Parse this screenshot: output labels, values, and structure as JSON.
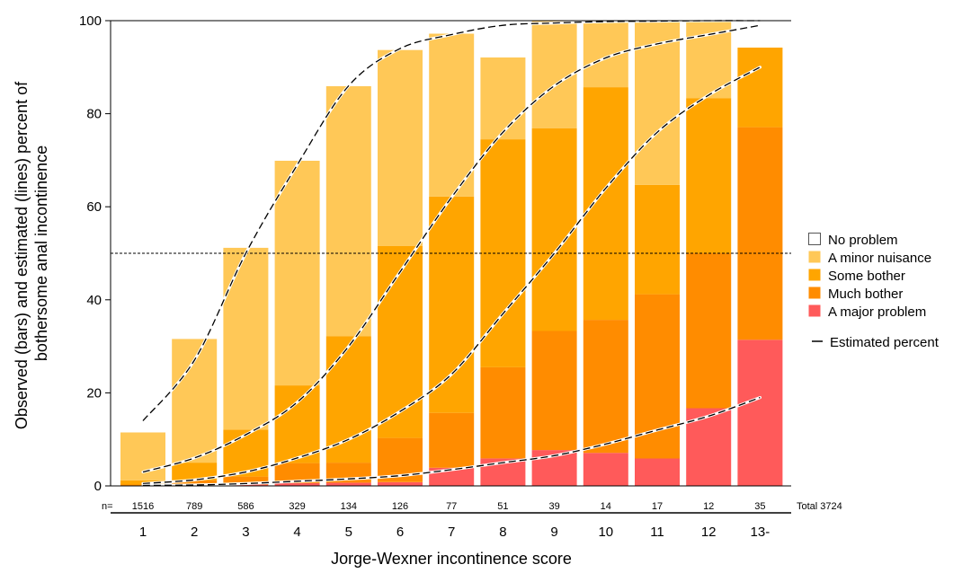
{
  "chart_data": {
    "type": "bar",
    "stacked": true,
    "xlabel": "Jorge-Wexner incontinence score",
    "ylabel": "Observed (bars) and estimated (lines) percent of bothersome anal incontinence",
    "ylabel_lines": [
      "Observed (bars) and estimated (lines) percent of",
      "bothersome anal incontinence"
    ],
    "ylim": [
      0,
      100
    ],
    "yticks": [
      0,
      20,
      40,
      60,
      80,
      100
    ],
    "categories": [
      "1",
      "2",
      "3",
      "4",
      "5",
      "6",
      "7",
      "8",
      "9",
      "10",
      "11",
      "12",
      "13-"
    ],
    "n_prefix": "n=",
    "n_values": [
      "1516",
      "789",
      "586",
      "329",
      "134",
      "126",
      "77",
      "51",
      "39",
      "14",
      "17",
      "12",
      "35"
    ],
    "n_total": "Total 3724",
    "reference_line_y": 50,
    "series": [
      {
        "name": "A major problem",
        "color": "#ff5a5a",
        "values": [
          0,
          0.3,
          0.3,
          0.6,
          0.7,
          0.8,
          3.9,
          5.9,
          7.7,
          7.1,
          5.9,
          16.7,
          31.4
        ]
      },
      {
        "name": "Much bother",
        "color": "#ff8c00",
        "values": [
          0.3,
          0.9,
          1.7,
          4.3,
          4.3,
          9.5,
          11.8,
          19.6,
          25.6,
          28.6,
          35.3,
          33.3,
          45.7
        ]
      },
      {
        "name": "Some bother",
        "color": "#ffa500",
        "values": [
          0.9,
          3.8,
          10.1,
          16.7,
          27.2,
          41.3,
          46.5,
          49.0,
          43.6,
          50.0,
          23.5,
          33.3,
          17.1
        ]
      },
      {
        "name": "A minor nuisance",
        "color": "#ffc857",
        "values": [
          10.3,
          26.6,
          39.1,
          48.3,
          53.7,
          42.1,
          35.0,
          17.6,
          23.1,
          14.3,
          35.3,
          16.7,
          0
        ]
      },
      {
        "name": "No problem",
        "color": "#ffffff",
        "values": [
          88.5,
          68.4,
          48.8,
          30.1,
          14.1,
          6.3,
          2.8,
          7.9,
          0,
          0,
          0,
          0,
          5.8
        ]
      }
    ],
    "estimated_lines": [
      {
        "threshold": "A minor nuisance or worse",
        "values": [
          14,
          27,
          50,
          69,
          86,
          94,
          97,
          99,
          99.5,
          99.8,
          99.9,
          100,
          100
        ]
      },
      {
        "threshold": "Some bother or worse",
        "values": [
          3,
          6,
          11,
          18,
          30,
          46,
          62,
          76,
          86,
          92,
          95,
          97,
          99
        ]
      },
      {
        "threshold": "Much bother or worse",
        "values": [
          0.5,
          1.3,
          3,
          6,
          10,
          16,
          24,
          37,
          50,
          64,
          76,
          84,
          90
        ]
      },
      {
        "threshold": "A major problem",
        "values": [
          0.1,
          0.2,
          0.5,
          1,
          1.5,
          2.2,
          3.5,
          5,
          6.5,
          9,
          12,
          15,
          19
        ]
      }
    ],
    "legend_position": "right",
    "legend": [
      {
        "label": "No problem",
        "color": "#ffffff"
      },
      {
        "label": "A minor nuisance",
        "color": "#ffc857"
      },
      {
        "label": "Some bother",
        "color": "#ffa500"
      },
      {
        "label": "Much bother",
        "color": "#ff8c00"
      },
      {
        "label": "A major problem",
        "color": "#ff5a5a"
      }
    ],
    "legend_line_label": "Estimated percent"
  }
}
